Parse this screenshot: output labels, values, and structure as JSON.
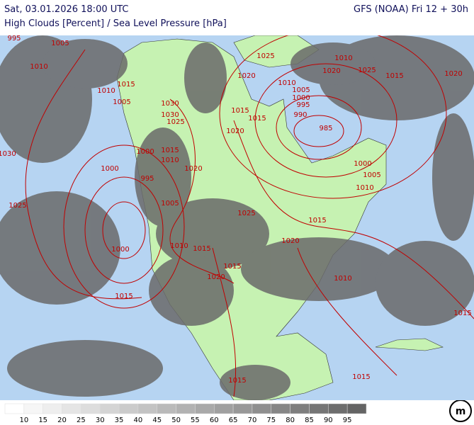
{
  "header": {
    "title_left": "Sat, 03.01.2026 18:00 UTC",
    "title_right": "GFS (NOAA) Fri 12 + 30h",
    "subtitle": "High Clouds [Percent] / Sea Level Pressure [hPa]"
  },
  "isobar_labels": [
    "995",
    "1005",
    "1010",
    "1010",
    "1005",
    "1015",
    "1030",
    "1030",
    "1025",
    "1030",
    "1000",
    "1000",
    "1015",
    "1010",
    "1020",
    "995",
    "1025",
    "1005",
    "1000",
    "1010",
    "1015",
    "1015",
    "1020",
    "1015",
    "1025",
    "1015",
    "1020",
    "1010",
    "1015",
    "1015",
    "1015",
    "1015",
    "1020",
    "1015",
    "1020",
    "1025",
    "1010",
    "1005",
    "1000",
    "995",
    "990",
    "985",
    "1020",
    "1025",
    "1015",
    "1020",
    "1010",
    "1000",
    "1005",
    "1010"
  ],
  "legend": {
    "labels": [
      10,
      15,
      20,
      25,
      30,
      35,
      40,
      45,
      50,
      55,
      60,
      65,
      70,
      75,
      80,
      85,
      90,
      95
    ]
  }
}
